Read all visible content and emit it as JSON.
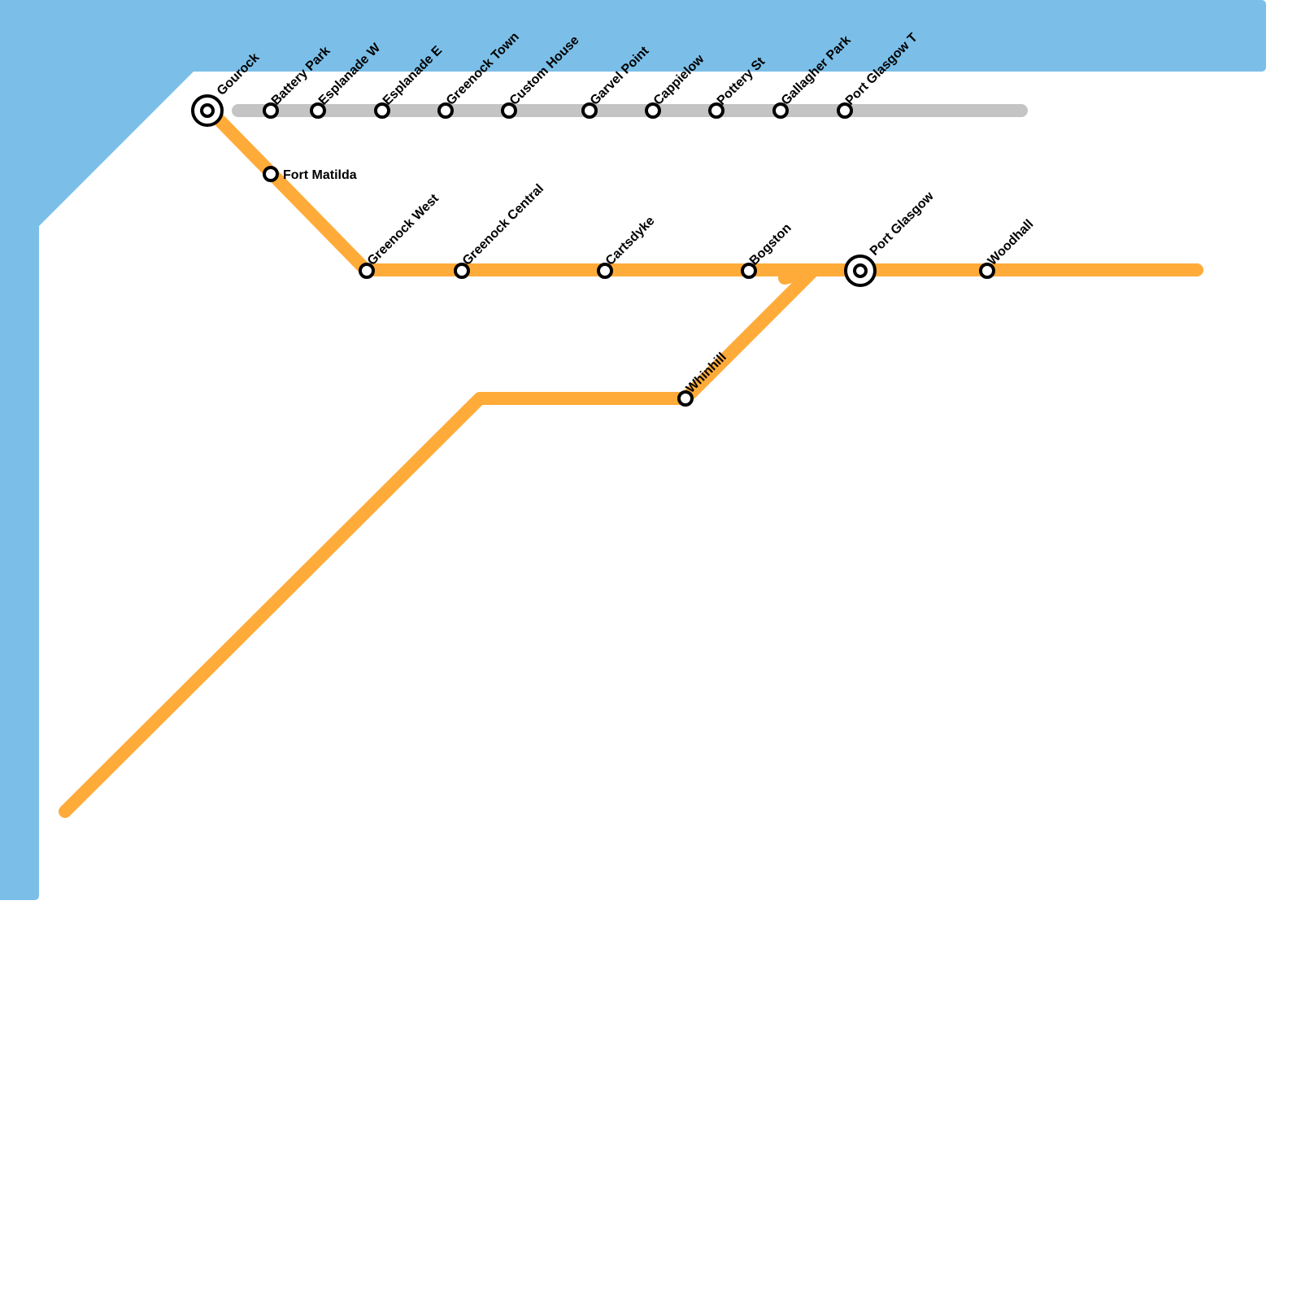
{
  "stations": [
    {
      "label": "Gourock"
    },
    {
      "label": "Battery Park"
    },
    {
      "label": "Esplanade W"
    },
    {
      "label": "Esplanade E"
    },
    {
      "label": "Greenock Town"
    },
    {
      "label": "Custom House"
    },
    {
      "label": "Garvel Point"
    },
    {
      "label": "Cappielow"
    },
    {
      "label": "Pottery St"
    },
    {
      "label": "Gallagher Park"
    },
    {
      "label": "Port Glasgow T"
    },
    {
      "label": "Fort Matilda"
    },
    {
      "label": "Greenock West"
    },
    {
      "label": "Greenock Central"
    },
    {
      "label": "Cartsdyke"
    },
    {
      "label": "Bogston"
    },
    {
      "label": "Port Glasgow"
    },
    {
      "label": "Woodhall"
    },
    {
      "label": "Whinhill"
    }
  ]
}
